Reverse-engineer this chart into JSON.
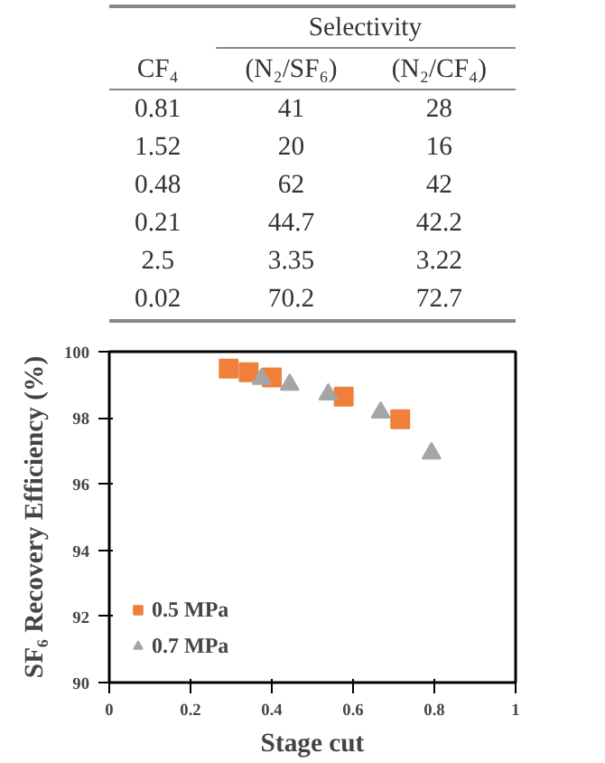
{
  "chart_data": [
    {
      "type": "other",
      "annotations": [
        "Selectivity",
        "CF₄",
        "(N₂/SF₆)",
        "(N₂/CF₄)",
        "0.81",
        "41",
        "28",
        "1.52",
        "20",
        "16",
        "0.48",
        "62",
        "42",
        "0.21",
        "44.7",
        "42.2",
        "2.5",
        "3.35",
        "3.22",
        "0.02",
        "70.2",
        "72.7"
      ]
    },
    {
      "type": "scatter",
      "xlabel": "Stage cut",
      "ylabel": "SF₆ Recovery Efficiency (%)",
      "xlim": [
        0,
        1
      ],
      "ylim": [
        90,
        100
      ],
      "xticks": [
        0,
        0.2,
        0.4,
        0.6,
        0.8,
        1
      ],
      "yticks": [
        90,
        92,
        94,
        96,
        98,
        100
      ],
      "grid": false,
      "legend": "bottom left",
      "series": [
        {
          "name": "0.5 MPa",
          "color": "#f07f3c",
          "marker": "square",
          "x": [
            0.294,
            0.343,
            0.4,
            0.577,
            0.716
          ],
          "values": [
            99.49,
            99.38,
            99.22,
            98.64,
            97.96
          ]
        },
        {
          "name": "0.7 MPa",
          "color": "#a5a5a5",
          "marker": "triangle",
          "x": [
            0.375,
            0.444,
            0.539,
            0.668,
            0.793
          ],
          "values": [
            99.18,
            99.0,
            98.71,
            98.16,
            96.93
          ]
        }
      ]
    }
  ]
}
